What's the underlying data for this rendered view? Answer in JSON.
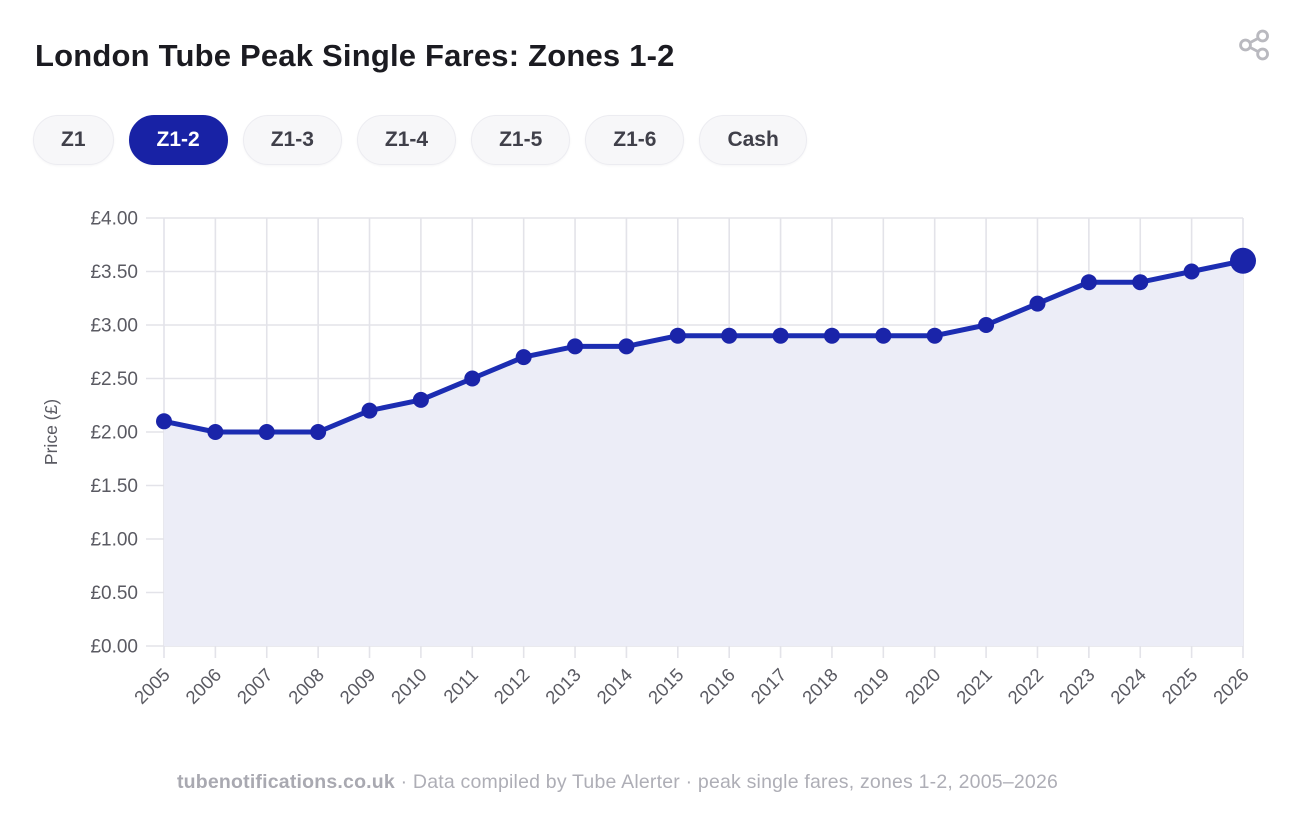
{
  "header": {
    "title": "London Tube Peak Single Fares: Zones 1-2",
    "share_icon": "share-nodes-icon",
    "share_icon_color": "#b9b9bf"
  },
  "tabs": [
    {
      "label": "Z1",
      "selected": false
    },
    {
      "label": "Z1-2",
      "selected": true
    },
    {
      "label": "Z1-3",
      "selected": false
    },
    {
      "label": "Z1-4",
      "selected": false
    },
    {
      "label": "Z1-5",
      "selected": false
    },
    {
      "label": "Z1-6",
      "selected": false
    },
    {
      "label": "Cash",
      "selected": false
    }
  ],
  "selected_tab_color": "#1822a5",
  "chart_data": {
    "type": "line",
    "title": "London Tube Peak Single Fares: Zones 1-2",
    "x": [
      2005,
      2006,
      2007,
      2008,
      2009,
      2010,
      2011,
      2012,
      2013,
      2014,
      2015,
      2016,
      2017,
      2018,
      2019,
      2020,
      2021,
      2022,
      2023,
      2024,
      2025,
      2026
    ],
    "series": [
      {
        "name": "Zones 1-2 peak single fare",
        "values": [
          2.1,
          2.0,
          2.0,
          2.0,
          2.2,
          2.3,
          2.5,
          2.7,
          2.8,
          2.8,
          2.9,
          2.9,
          2.9,
          2.9,
          2.9,
          2.9,
          3.0,
          3.2,
          3.4,
          3.4,
          3.5,
          3.6
        ]
      }
    ],
    "xlabel": "",
    "ylabel": "Price (£)",
    "ylim": [
      0,
      4
    ],
    "ytick_step": 0.5,
    "ytick_prefix": "£",
    "grid": true,
    "legend": false,
    "x_labels_rotated_degrees": -45,
    "last_point_emphasized": true,
    "colors": {
      "line": "#1c2db2",
      "point": "#1a24a9",
      "area_fill": "#ecedf7",
      "gridline": "#e3e3e9",
      "tick_label": "#5a5a62",
      "axis_title": "#5a5a62"
    }
  },
  "footer": {
    "site": "tubenotifications.co.uk",
    "separator": "·",
    "attribution": "Data compiled by Tube Alerter",
    "caption": "peak single fares, zones 1-2, 2005–2026"
  }
}
